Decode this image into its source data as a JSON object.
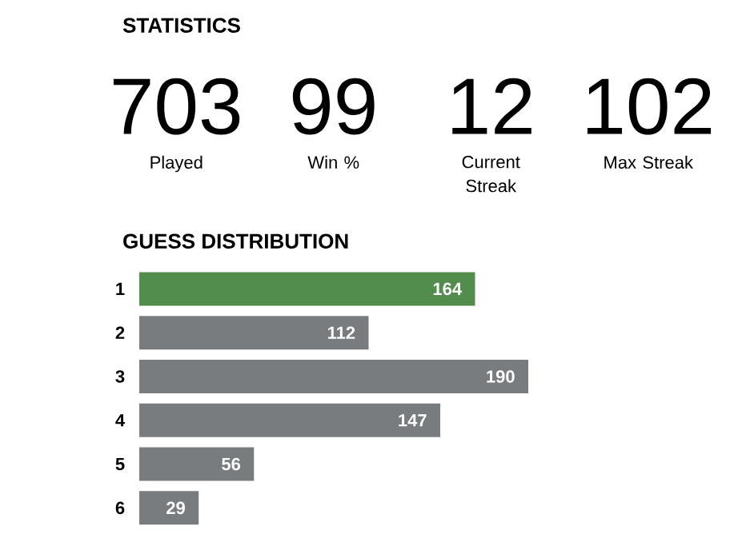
{
  "chart_data": [
    {
      "type": "other",
      "title": "STATISTICS",
      "categories": [
        "Played",
        "Win %",
        "Current Streak",
        "Max Streak"
      ],
      "values": [
        703,
        99,
        12,
        102
      ],
      "data_labels": true
    },
    {
      "type": "bar",
      "orientation": "horizontal",
      "title": "GUESS DISTRIBUTION",
      "categories": [
        "1",
        "2",
        "3",
        "4",
        "5",
        "6"
      ],
      "values": [
        164,
        112,
        190,
        147,
        56,
        29
      ],
      "colors": [
        "#538d4e",
        "#787c7e",
        "#787c7e",
        "#787c7e",
        "#787c7e",
        "#787c7e"
      ],
      "data_labels": true,
      "tick_labels": "y"
    }
  ]
}
